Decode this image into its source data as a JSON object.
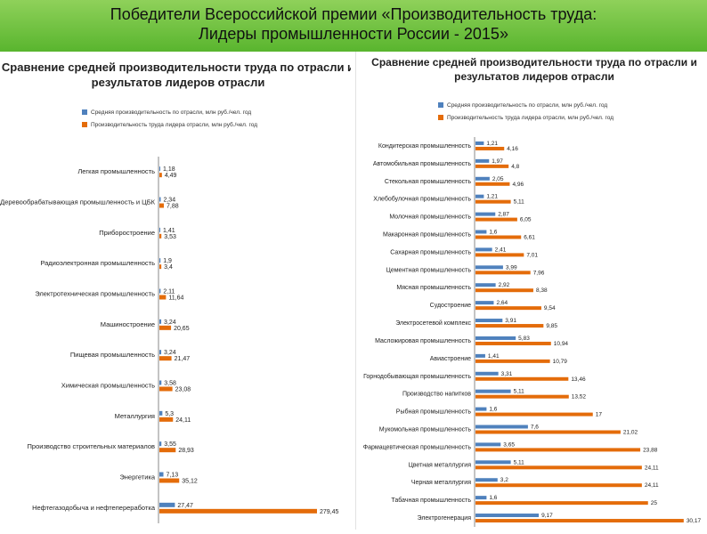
{
  "header": {
    "line1": "Победители Всероссийской премии «Производительность труда:",
    "line2": "Лидеры промышленности России - 2015»",
    "bg_color": "#6cc23a"
  },
  "colors": {
    "series_avg": "#4f81bd",
    "series_leader": "#e46c0a"
  },
  "chart_data": [
    {
      "type": "bar",
      "orientation": "horizontal",
      "title": "Сравнение средней производительности труда по отрасли и результатов лидеров отрасли",
      "legend_position": "top-left",
      "grid": false,
      "categories": [
        "Легкая промышленность",
        "Деревообрабатывающая промышленность и ЦБК",
        "Приборостроение",
        "Радиоэлектронная промышленность",
        "Электротехническая промышленность",
        "Машиностроение",
        "Пищевая промышленность",
        "Химическая промышленность",
        "Металлургия",
        "Производство строительных материалов",
        "Энергетика",
        "Нефтегазодобыча и нефтепереработка"
      ],
      "series": [
        {
          "name": "Средняя производительность по отрасли, млн руб./чел. год",
          "values": [
            1.18,
            2.34,
            1.41,
            1.9,
            2.11,
            3.24,
            3.24,
            3.58,
            5.3,
            3.55,
            7.13,
            27.47
          ]
        },
        {
          "name": "Производительность труда лидера отрасли, млн руб./чел. год",
          "values": [
            4.49,
            7.88,
            3.53,
            3.4,
            11.64,
            20.65,
            21.47,
            23.08,
            24.11,
            28.93,
            35.12,
            279.45
          ]
        }
      ],
      "xlim": [
        0,
        300
      ]
    },
    {
      "type": "bar",
      "orientation": "horizontal",
      "title": "Сравнение средней производительности труда по отрасли и результатов лидеров отрасли",
      "legend_position": "top-left",
      "grid": false,
      "categories": [
        "Кондитерская промышленность",
        "Автомобильная промышленность",
        "Стекольная промышленность",
        "Хлебобулочная промышленность",
        "Молочная промышленность",
        "Макаронная промышленность",
        "Сахарная промышленность",
        "Цементная промышленность",
        "Мясная промышленность",
        "Судостроение",
        "Электросетевой комплекс",
        "Масложировая промышленность",
        "Авиастроение",
        "Горнодобывающая промышленность",
        "Производство напитков",
        "Рыбная промышленность",
        "Мукомольная промышленность",
        "Фармацевтическая промышленность",
        "Цветная металлургия",
        "Черная металлургия",
        "Табачная промышленность",
        "Электрогенерация"
      ],
      "series": [
        {
          "name": "Средняя производительность по отрасли, млн руб./чел. год",
          "values": [
            1.21,
            1.97,
            2.05,
            1.21,
            2.87,
            1.6,
            2.41,
            3.99,
            2.92,
            2.64,
            3.91,
            5.83,
            1.41,
            3.31,
            5.11,
            1.6,
            7.6,
            3.65,
            5.11,
            3.2,
            1.6,
            9.17
          ]
        },
        {
          "name": "Производительность труда лидера отрасли, млн руб./чел. год",
          "values": [
            4.16,
            4.8,
            4.96,
            5.11,
            6.05,
            6.61,
            7.01,
            7.96,
            8.38,
            9.54,
            9.85,
            10.94,
            10.79,
            13.46,
            13.52,
            17,
            21.02,
            23.88,
            24.11,
            24.11,
            25,
            30.17
          ]
        }
      ],
      "xlim": [
        0,
        32
      ]
    }
  ]
}
